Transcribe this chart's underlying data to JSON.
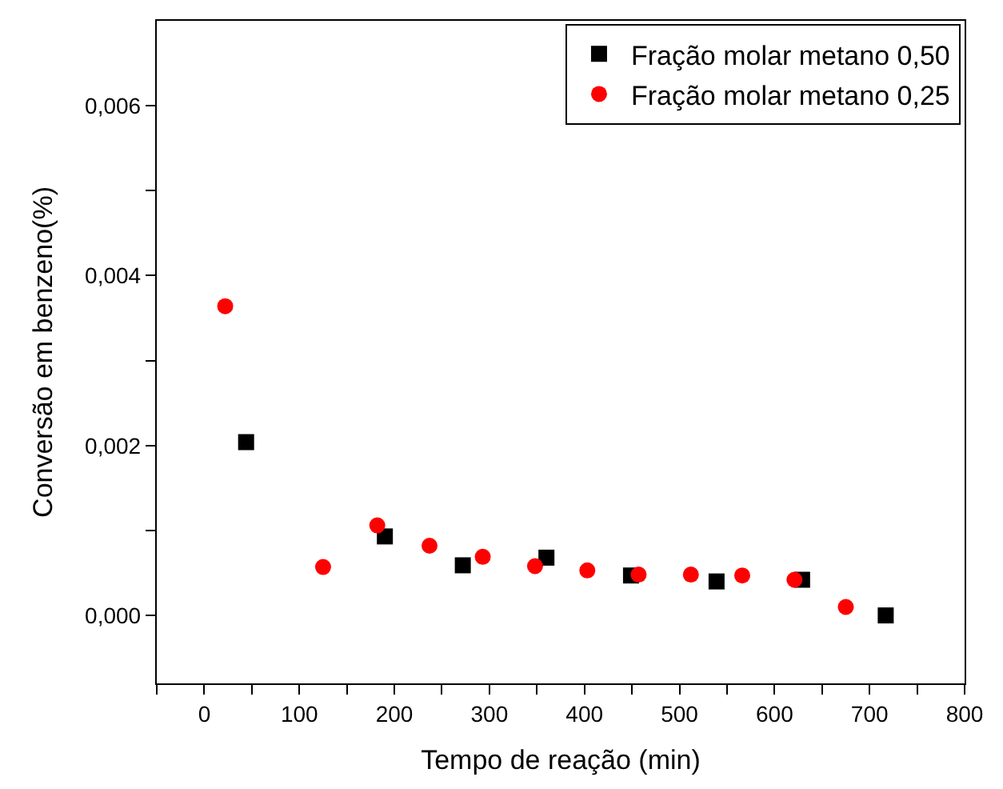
{
  "chart_data": {
    "type": "scatter",
    "xlabel": "Tempo de reação (min)",
    "ylabel": "Conversão em benzeno(%)",
    "xlim": [
      -50,
      800
    ],
    "ylim": [
      -0.0008,
      0.007
    ],
    "xticks": [
      {
        "value": -50,
        "label": null
      },
      0,
      {
        "value": 50,
        "label": null
      },
      100,
      {
        "value": 150,
        "label": null
      },
      200,
      {
        "value": 250,
        "label": null
      },
      300,
      {
        "value": 350,
        "label": null
      },
      400,
      {
        "value": 450,
        "label": null
      },
      500,
      {
        "value": 550,
        "label": null
      },
      600,
      {
        "value": 650,
        "label": null
      },
      700,
      {
        "value": 750,
        "label": null
      },
      800
    ],
    "yticks": [
      {
        "value": 0,
        "label": "0,000"
      },
      {
        "value": 0.001,
        "label": null
      },
      {
        "value": 0.002,
        "label": "0,002"
      },
      {
        "value": 0.003,
        "label": null
      },
      {
        "value": 0.004,
        "label": "0,004"
      },
      {
        "value": 0.005,
        "label": null
      },
      {
        "value": 0.006,
        "label": "0,006"
      }
    ],
    "legend": "top right",
    "series": [
      {
        "name": "Fração molar metano 0,50",
        "color": "#000000",
        "marker": "square",
        "x": [
          44,
          190,
          272,
          360,
          449,
          539,
          629,
          717
        ],
        "values": [
          0.00204,
          0.00093,
          0.00059,
          0.00068,
          0.00047,
          0.0004,
          0.00042,
          0.0
        ]
      },
      {
        "name": "Fração molar metano 0,25",
        "color": "#ff0000",
        "marker": "circle",
        "x": [
          22,
          125,
          182,
          237,
          293,
          348,
          403,
          457,
          512,
          566,
          621,
          675
        ],
        "values": [
          0.00364,
          0.00057,
          0.00106,
          0.00082,
          0.00069,
          0.00058,
          0.00053,
          0.00048,
          0.00048,
          0.00047,
          0.00042,
          0.0001
        ]
      }
    ]
  }
}
